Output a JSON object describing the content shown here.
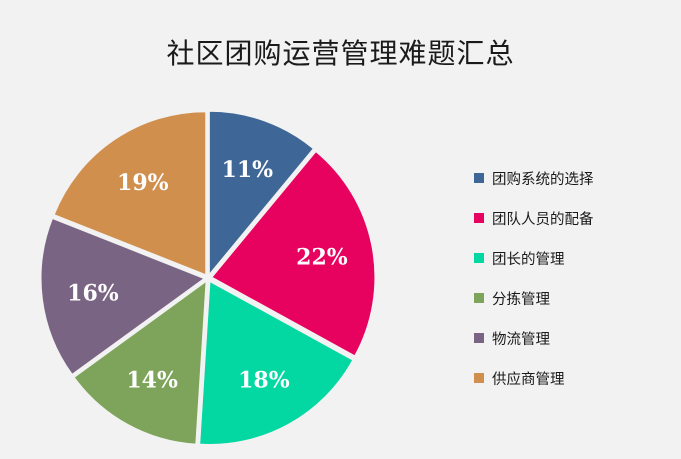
{
  "chart_data": {
    "type": "pie",
    "title": "社区团购运营管理难题汇总",
    "slices": [
      {
        "label": "团购系统的选择",
        "value": 11,
        "value_label": "11%",
        "color": "#3e6797"
      },
      {
        "label": "团队人员的配备",
        "value": 22,
        "value_label": "22%",
        "color": "#e8025f"
      },
      {
        "label": "团长的管理",
        "value": 18,
        "value_label": "18%",
        "color": "#04d8a2"
      },
      {
        "label": "分拣管理",
        "value": 14,
        "value_label": "14%",
        "color": "#7da45a"
      },
      {
        "label": "物流管理",
        "value": 16,
        "value_label": "16%",
        "color": "#7a6483"
      },
      {
        "label": "供应商管理",
        "value": 19,
        "value_label": "19%",
        "color": "#d18f4e"
      }
    ],
    "legend_position": "right",
    "start": "top, clockwise",
    "exploded": true
  }
}
